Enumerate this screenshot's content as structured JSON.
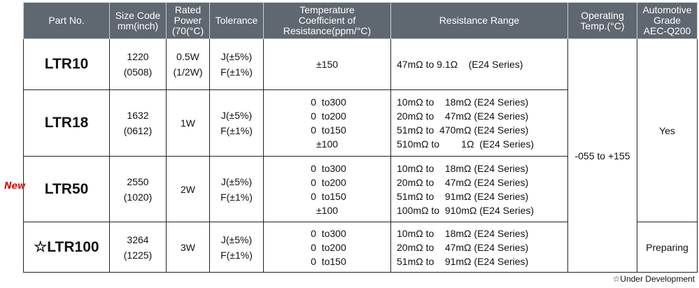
{
  "header": {
    "part_no": "Part No.",
    "size_code_1": "Size Code",
    "size_code_2": "mm(inch)",
    "rated_power_1": "Rated",
    "rated_power_2": "Power",
    "rated_power_3": "(70(°C)",
    "tolerance": "Tolerance",
    "tcr_1": "Temperature",
    "tcr_2": "Coefficient of",
    "tcr_3": "Resistance(ppm/°C)",
    "resistance_range": "Resistance Range",
    "op_temp_1": "Operating",
    "op_temp_2": "Temp.(°C)",
    "automotive_1": "Automotive",
    "automotive_2": "Grade",
    "automotive_3": "AEC-Q200"
  },
  "rows": [
    {
      "part": "LTR10",
      "size": [
        "1220",
        "(0508)"
      ],
      "power": [
        "0.5W",
        "(1/2W)"
      ],
      "tolerance": [
        "J(±5%)",
        "F(±1%)"
      ],
      "tcr": [
        "±150"
      ],
      "range": [
        "47mΩ to 9.1Ω    (E24 Series)"
      ]
    },
    {
      "part": "LTR18",
      "size": [
        "1632",
        "(0612)"
      ],
      "power": [
        "1W"
      ],
      "tolerance": [
        "J(±5%)",
        "F(±1%)"
      ],
      "tcr": [
        " 0  to300",
        " 0  to200",
        " 0  to150",
        "±100"
      ],
      "range": [
        "10mΩ to    18mΩ (E24 Series)",
        "20mΩ to    47mΩ (E24 Series)",
        "51mΩ to  470mΩ (E24 Series)",
        "510mΩ to        1Ω  (E24 Series)"
      ]
    },
    {
      "part": "LTR50",
      "badge": "New",
      "size": [
        "2550",
        "(1020)"
      ],
      "power": [
        "2W"
      ],
      "tolerance": [
        "J(±5%)",
        "F(±1%)"
      ],
      "tcr": [
        " 0  to300",
        " 0  to200",
        " 0  to150",
        "±100"
      ],
      "range": [
        "10mΩ to    18mΩ (E24 Series)",
        "20mΩ to    47mΩ (E24 Series)",
        "51mΩ to    91mΩ (E24 Series)",
        "100mΩ to  910mΩ (E24 Series)"
      ]
    },
    {
      "part": "☆LTR100",
      "size": [
        "3264",
        "(1225)"
      ],
      "power": [
        "3W"
      ],
      "tolerance": [
        "J(±5%)",
        "F(±1%)"
      ],
      "tcr": [
        " 0  to300",
        " 0  to200",
        " 0  to150"
      ],
      "range": [
        "10mΩ to    18mΩ (E24 Series)",
        "20mΩ to    47mΩ (E24 Series)",
        "51mΩ to    91mΩ (E24 Series)"
      ]
    }
  ],
  "operating_temp": "-055 to +155",
  "automotive_yes": "Yes",
  "automotive_preparing": "Preparing",
  "footnote": "☆Under Development",
  "colors": {
    "header_bg": "#5f6770",
    "badge": "#d61a1a"
  }
}
